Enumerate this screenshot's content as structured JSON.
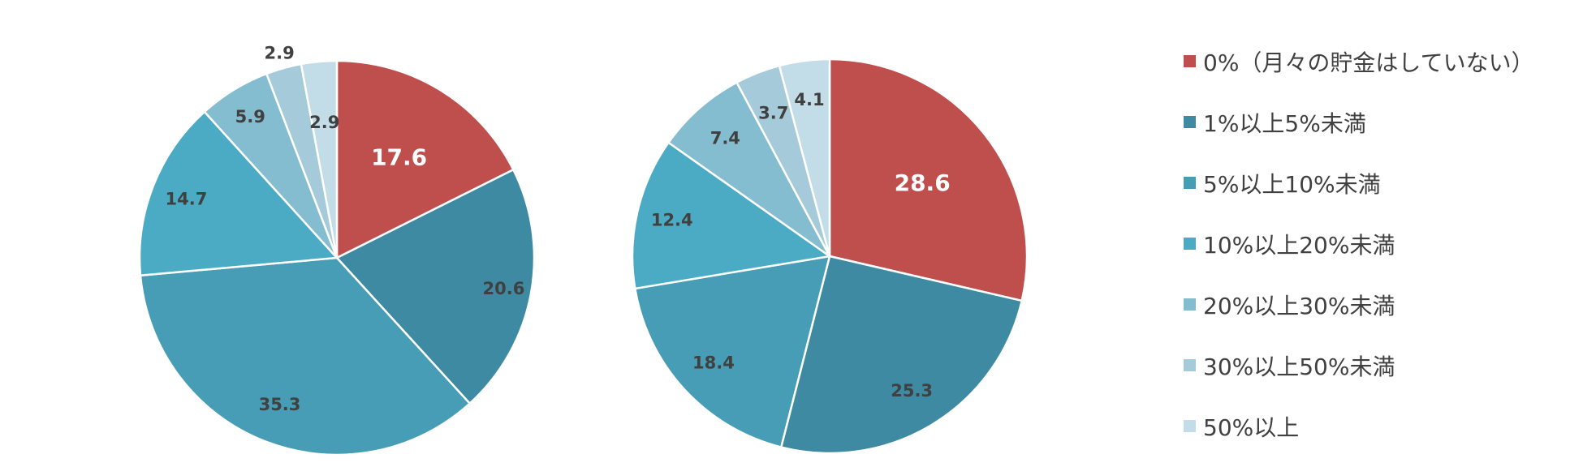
{
  "colors": {
    "cat0": "#BE4F4D",
    "cat1": "#3E8AA2",
    "cat2": "#469DB5",
    "cat3": "#4CABC4",
    "cat4": "#84BCD0",
    "cat5": "#A5CBDA",
    "cat6": "#C2DDE7",
    "label_dark": "#404040",
    "label_light": "#FFFFFF"
  },
  "legend": [
    "0%（月々の貯金はしていない）",
    "1%以上5%未満",
    "5%以上10%未満",
    "10%以上20%未満",
    "20%以上30%未満",
    "30%以上50%未満",
    "50%以上"
  ],
  "chart_data": [
    {
      "type": "pie",
      "categories": [
        "0%（月々の貯金はしていない）",
        "1%以上5%未満",
        "5%以上10%未満",
        "10%以上20%未満",
        "20%以上30%未満",
        "30%以上50%未満",
        "50%以上"
      ],
      "values": [
        17.6,
        20.6,
        35.3,
        14.7,
        5.9,
        2.9,
        2.9
      ],
      "labels": [
        "17.6",
        "20.6",
        "35.3",
        "14.7",
        "5.9",
        "2.9",
        "2.9"
      ],
      "start": "12 o'clock, clockwise",
      "legend_position": "right"
    },
    {
      "type": "pie",
      "categories": [
        "0%（月々の貯金はしていない）",
        "1%以上5%未満",
        "5%以上10%未満",
        "10%以上20%未満",
        "20%以上30%未満",
        "30%以上50%未満",
        "50%以上"
      ],
      "values": [
        28.6,
        25.3,
        18.4,
        12.4,
        7.4,
        3.7,
        4.1
      ],
      "labels": [
        "28.6",
        "25.3",
        "18.4",
        "12.4",
        "7.4",
        "3.7",
        "4.1"
      ],
      "start": "12 o'clock, clockwise",
      "legend_position": "right"
    }
  ]
}
